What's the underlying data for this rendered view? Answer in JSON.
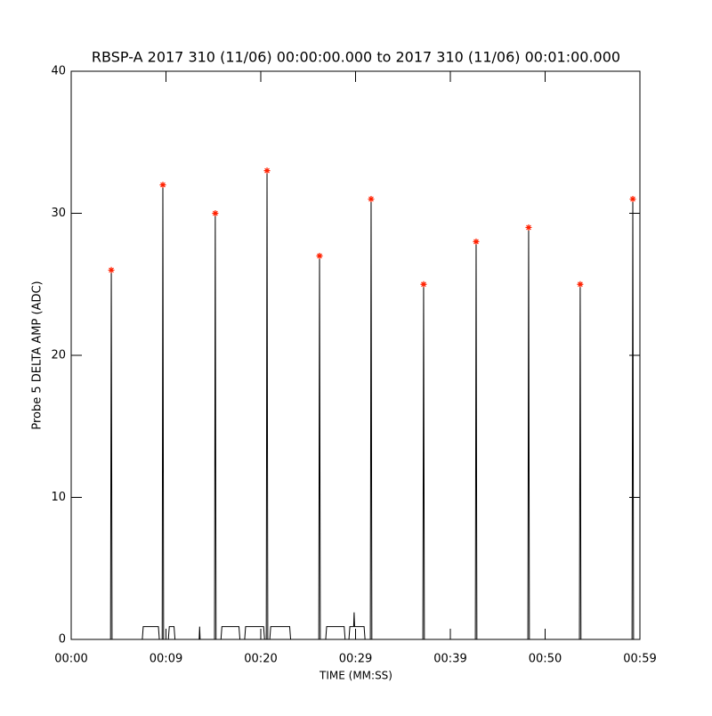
{
  "chart_data": {
    "type": "line",
    "title": "RBSP-A 2017 310 (11/06) 00:00:00.000 to 2017 310 (11/06) 00:01:00.000",
    "x_label": "TIME (MM:SS)",
    "y_label": "Probe 5 DELTA AMP (ADC)",
    "xlim": [
      0,
      60
    ],
    "ylim": [
      0,
      40
    ],
    "xticks": [
      {
        "value": 0,
        "label": "00:00"
      },
      {
        "value": 10,
        "label": "00:09"
      },
      {
        "value": 20,
        "label": "00:20"
      },
      {
        "value": 30,
        "label": "00:29"
      },
      {
        "value": 40,
        "label": "00:39"
      },
      {
        "value": 50,
        "label": "00:50"
      },
      {
        "value": 60,
        "label": "00:59"
      }
    ],
    "yticks": [
      0,
      10,
      20,
      30,
      40
    ],
    "series": [
      {
        "type": "line",
        "color": "#000000",
        "x": [
          0,
          4.15,
          4.23,
          4.31,
          7.5,
          7.6,
          9.2,
          9.3,
          9.6,
          9.67,
          9.75,
          10.25,
          10.35,
          10.85,
          10.95,
          13.5,
          13.55,
          13.6,
          15.12,
          15.2,
          15.28,
          15.8,
          15.9,
          17.7,
          17.8,
          18.3,
          18.4,
          20.3,
          20.4,
          20.58,
          20.66,
          20.74,
          20.95,
          21.05,
          23.05,
          23.15,
          26.12,
          26.2,
          26.28,
          26.85,
          26.95,
          28.8,
          28.9,
          29.3,
          29.4,
          29.8,
          29.85,
          29.9,
          30.9,
          31,
          31.56,
          31.64,
          31.72,
          37.1,
          37.18,
          37.26,
          42.64,
          42.72,
          42.8,
          48.18,
          48.26,
          48.34,
          53.62,
          53.7,
          53.78,
          59.17,
          59.25,
          59.33,
          60
        ],
        "values": [
          0,
          0,
          26,
          0,
          0,
          0.9,
          0.9,
          0,
          0,
          32,
          0,
          0,
          0.9,
          0.9,
          0,
          0,
          0.9,
          0,
          0,
          30,
          0,
          0,
          0.9,
          0.9,
          0,
          0,
          0.9,
          0.9,
          0,
          0,
          33,
          0,
          0,
          0.9,
          0.9,
          0,
          0,
          27,
          0,
          0,
          0.9,
          0.9,
          0,
          0,
          0.9,
          0.9,
          1.9,
          0.9,
          0.9,
          0,
          0,
          31,
          0,
          0,
          25,
          0,
          0,
          28,
          0,
          0,
          29,
          0,
          0,
          25,
          0,
          0,
          31,
          0,
          0
        ]
      },
      {
        "type": "scatter",
        "color": "#ff2000",
        "x": [
          4.23,
          9.67,
          15.2,
          20.66,
          26.2,
          31.64,
          37.18,
          42.72,
          48.26,
          53.7,
          59.25
        ],
        "values": [
          26,
          32,
          30,
          33,
          27,
          31,
          25,
          28,
          29,
          25,
          31
        ]
      }
    ]
  }
}
